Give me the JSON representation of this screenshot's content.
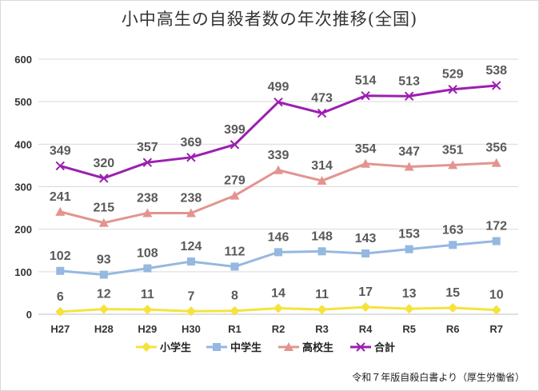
{
  "title": "小中高生の自殺者数の年次推移(全国)",
  "source": "令和７年版自殺白書より（厚生労働省）",
  "chart_data": {
    "type": "line",
    "title": "小中高生の自殺者数の年次推移(全国)",
    "categories": [
      "H27",
      "H28",
      "H29",
      "H30",
      "R1",
      "R2",
      "R3",
      "R4",
      "R5",
      "R6",
      "R7"
    ],
    "ylim": [
      0,
      600
    ],
    "yticks": [
      0,
      100,
      200,
      300,
      400,
      500,
      600
    ],
    "grid": true,
    "legend_position": "bottom",
    "series": [
      {
        "name": "小学生",
        "color": "#f5e33c",
        "marker": "diamond",
        "values": [
          6,
          12,
          11,
          7,
          8,
          14,
          11,
          17,
          13,
          15,
          10
        ]
      },
      {
        "name": "中学生",
        "color": "#95b8e0",
        "marker": "square",
        "values": [
          102,
          93,
          108,
          124,
          112,
          146,
          148,
          143,
          153,
          163,
          172
        ]
      },
      {
        "name": "高校生",
        "color": "#e39490",
        "marker": "triangle",
        "values": [
          241,
          215,
          238,
          238,
          279,
          339,
          314,
          354,
          347,
          351,
          356
        ]
      },
      {
        "name": "合計",
        "color": "#9b1fb0",
        "marker": "x",
        "values": [
          349,
          320,
          357,
          369,
          399,
          499,
          473,
          514,
          513,
          529,
          538
        ]
      }
    ]
  }
}
